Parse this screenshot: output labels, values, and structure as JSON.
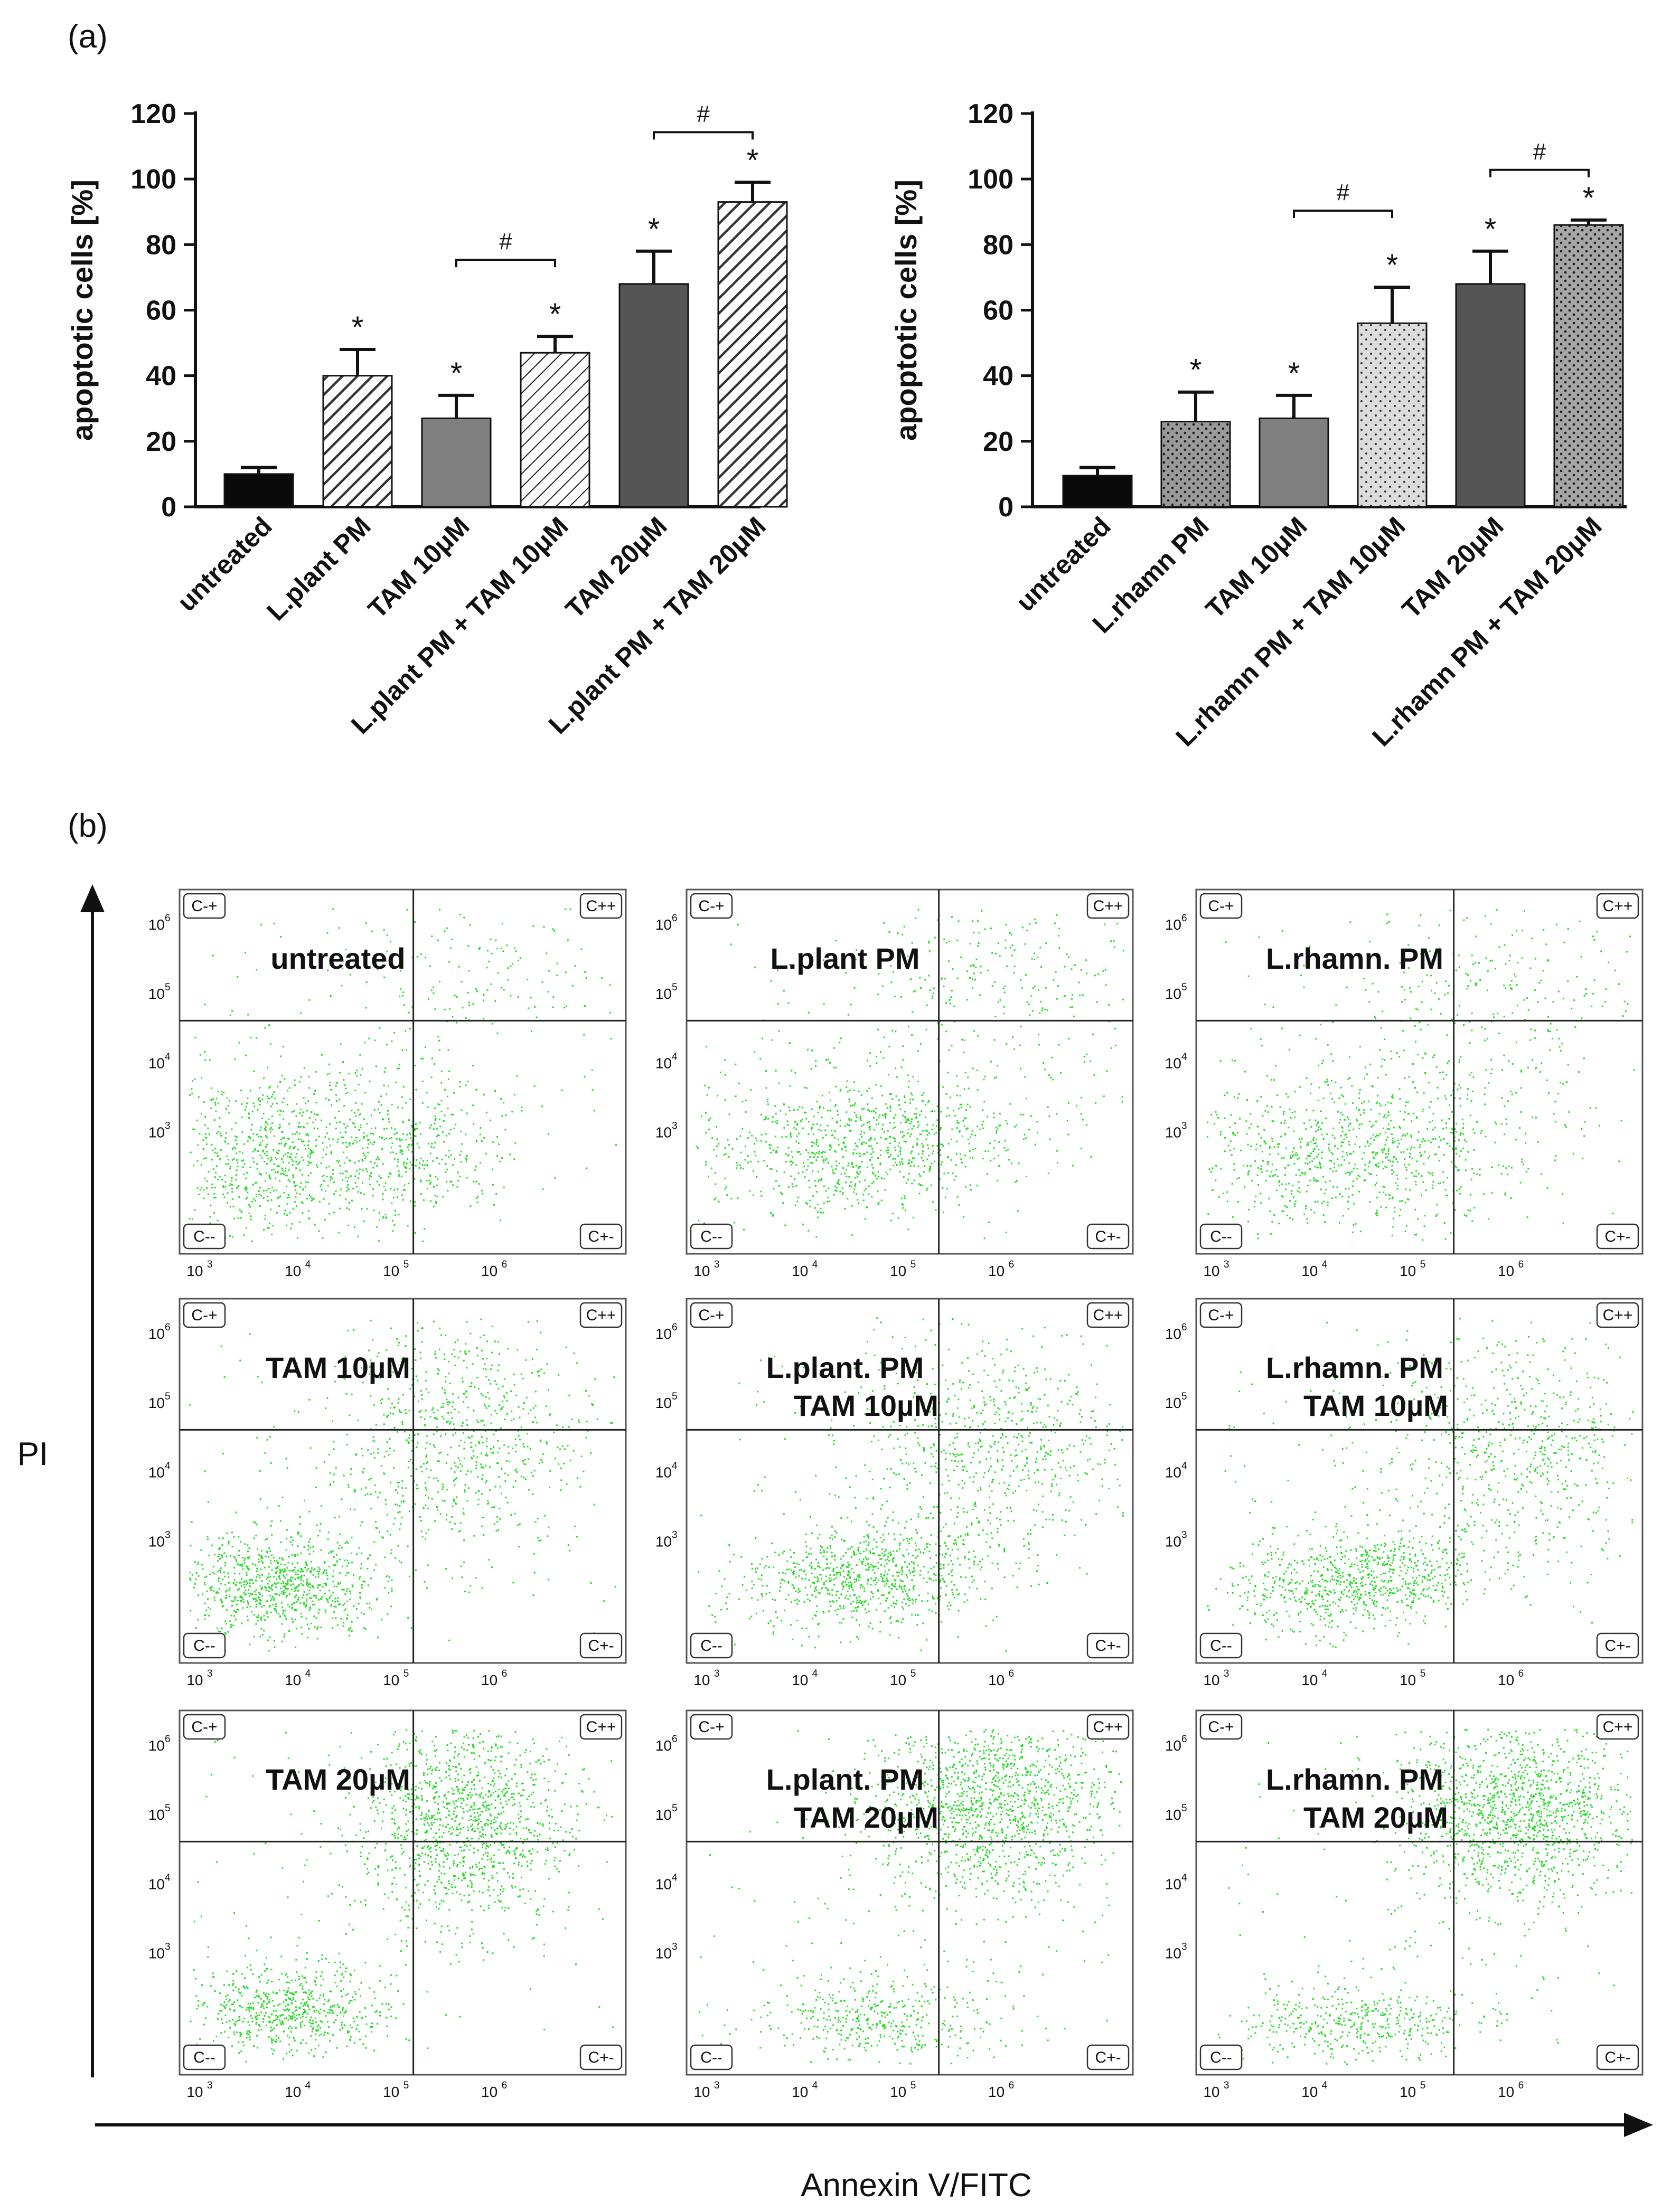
{
  "panel_a": {
    "label": "(a)"
  },
  "panel_b": {
    "label": "(b)",
    "y_axis_title": "PI",
    "x_axis_title": "Annexin V/FITC",
    "quadrant_labels": {
      "tl": "C-+",
      "tr": "C++",
      "bl": "C--",
      "br": "C+-"
    },
    "tick_labels": [
      "10",
      "3",
      "10",
      "4",
      "10",
      "5",
      "10",
      "6"
    ],
    "plots": [
      {
        "lines": [
          "untreated"
        ]
      },
      {
        "lines": [
          "L.plant PM"
        ]
      },
      {
        "lines": [
          "L.rhamn. PM"
        ]
      },
      {
        "lines": [
          "TAM 10µM"
        ]
      },
      {
        "lines": [
          "L.plant. PM",
          "TAM 10µM"
        ]
      },
      {
        "lines": [
          "L.rhamn. PM",
          "TAM 10µM"
        ]
      },
      {
        "lines": [
          "TAM 20µM"
        ]
      },
      {
        "lines": [
          "L.plant. PM",
          "TAM 20µM"
        ]
      },
      {
        "lines": [
          "L.rhamn. PM",
          "TAM 20µM"
        ]
      }
    ]
  },
  "colors": {
    "dots": "#22dd22",
    "dots_dark": "#11aa11",
    "bar_black": "#0a0a0a",
    "bar_mid": "#808080",
    "bar_dark": "#555555",
    "bar_light": "#dcdcdc"
  },
  "chart_data": [
    {
      "type": "bar",
      "title": "",
      "ylabel": "apoptotic cells [%]",
      "xlabel": "",
      "ylim": [
        0,
        120
      ],
      "yticks": [
        "0",
        "20",
        "40",
        "60",
        "80",
        "100",
        "120"
      ],
      "categories": [
        "untreated",
        "L.plant PM",
        "TAM 10μM",
        "L.plant PM + TAM 10μM",
        "TAM 20μM",
        "L.plant PM + TAM 20μM"
      ],
      "values": [
        10,
        40,
        27,
        47,
        68,
        93
      ],
      "errors": [
        2,
        8,
        7,
        5,
        10,
        6
      ],
      "star_label": "*",
      "stars": [
        false,
        true,
        true,
        true,
        true,
        true
      ],
      "brackets": [
        {
          "from": 2,
          "to": 3,
          "label": "#"
        },
        {
          "from": 4,
          "to": 5,
          "label": "#"
        }
      ]
    },
    {
      "type": "bar",
      "title": "",
      "ylabel": "apoptotic cells [%]",
      "xlabel": "",
      "ylim": [
        0,
        120
      ],
      "yticks": [
        "0",
        "20",
        "40",
        "60",
        "80",
        "100",
        "120"
      ],
      "categories": [
        "untreated",
        "L.rhamn PM",
        "TAM 10μM",
        "L.rhamn PM + TAM 10μM",
        "TAM 20μM",
        "L.rhamn PM + TAM 20μM"
      ],
      "values": [
        9.5,
        26,
        27,
        56,
        68,
        86
      ],
      "errors": [
        2.5,
        9,
        7,
        11,
        10,
        1.5
      ],
      "star_label": "*",
      "stars": [
        false,
        true,
        true,
        true,
        true,
        true
      ],
      "brackets": [
        {
          "from": 2,
          "to": 3,
          "label": "#"
        },
        {
          "from": 4,
          "to": 5,
          "label": "#"
        }
      ]
    }
  ]
}
